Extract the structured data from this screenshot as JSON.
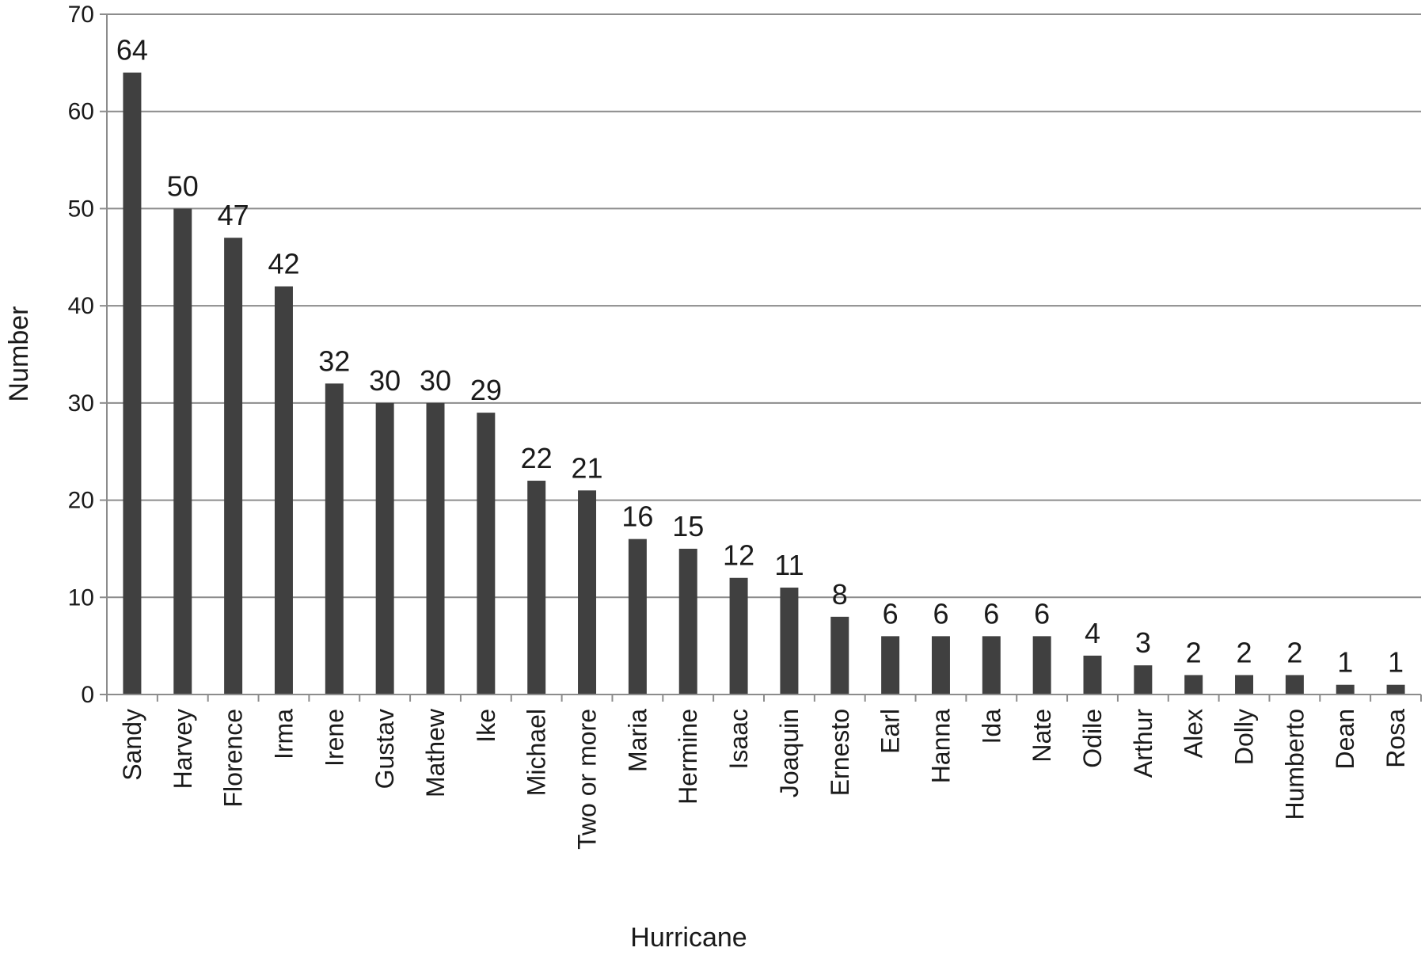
{
  "chart_data": {
    "type": "bar",
    "xlabel": "Hurricane",
    "ylabel": "Number",
    "ylim": [
      0,
      70
    ],
    "ytick_step": 10,
    "grid": true,
    "bar_color": "#404040",
    "categories": [
      "Sandy",
      "Harvey",
      "Florence",
      "Irma",
      "Irene",
      "Gustav",
      "Mathew",
      "Ike",
      "Michael",
      "Two or more",
      "Maria",
      "Hermine",
      "Isaac",
      "Joaquin",
      "Ernesto",
      "Earl",
      "Hanna",
      "Ida",
      "Nate",
      "Odile",
      "Arthur",
      "Alex",
      "Dolly",
      "Humberto",
      "Dean",
      "Rosa"
    ],
    "values": [
      64,
      50,
      47,
      42,
      32,
      30,
      30,
      29,
      22,
      21,
      16,
      15,
      12,
      11,
      8,
      6,
      6,
      6,
      6,
      4,
      3,
      2,
      2,
      2,
      1,
      1
    ]
  }
}
